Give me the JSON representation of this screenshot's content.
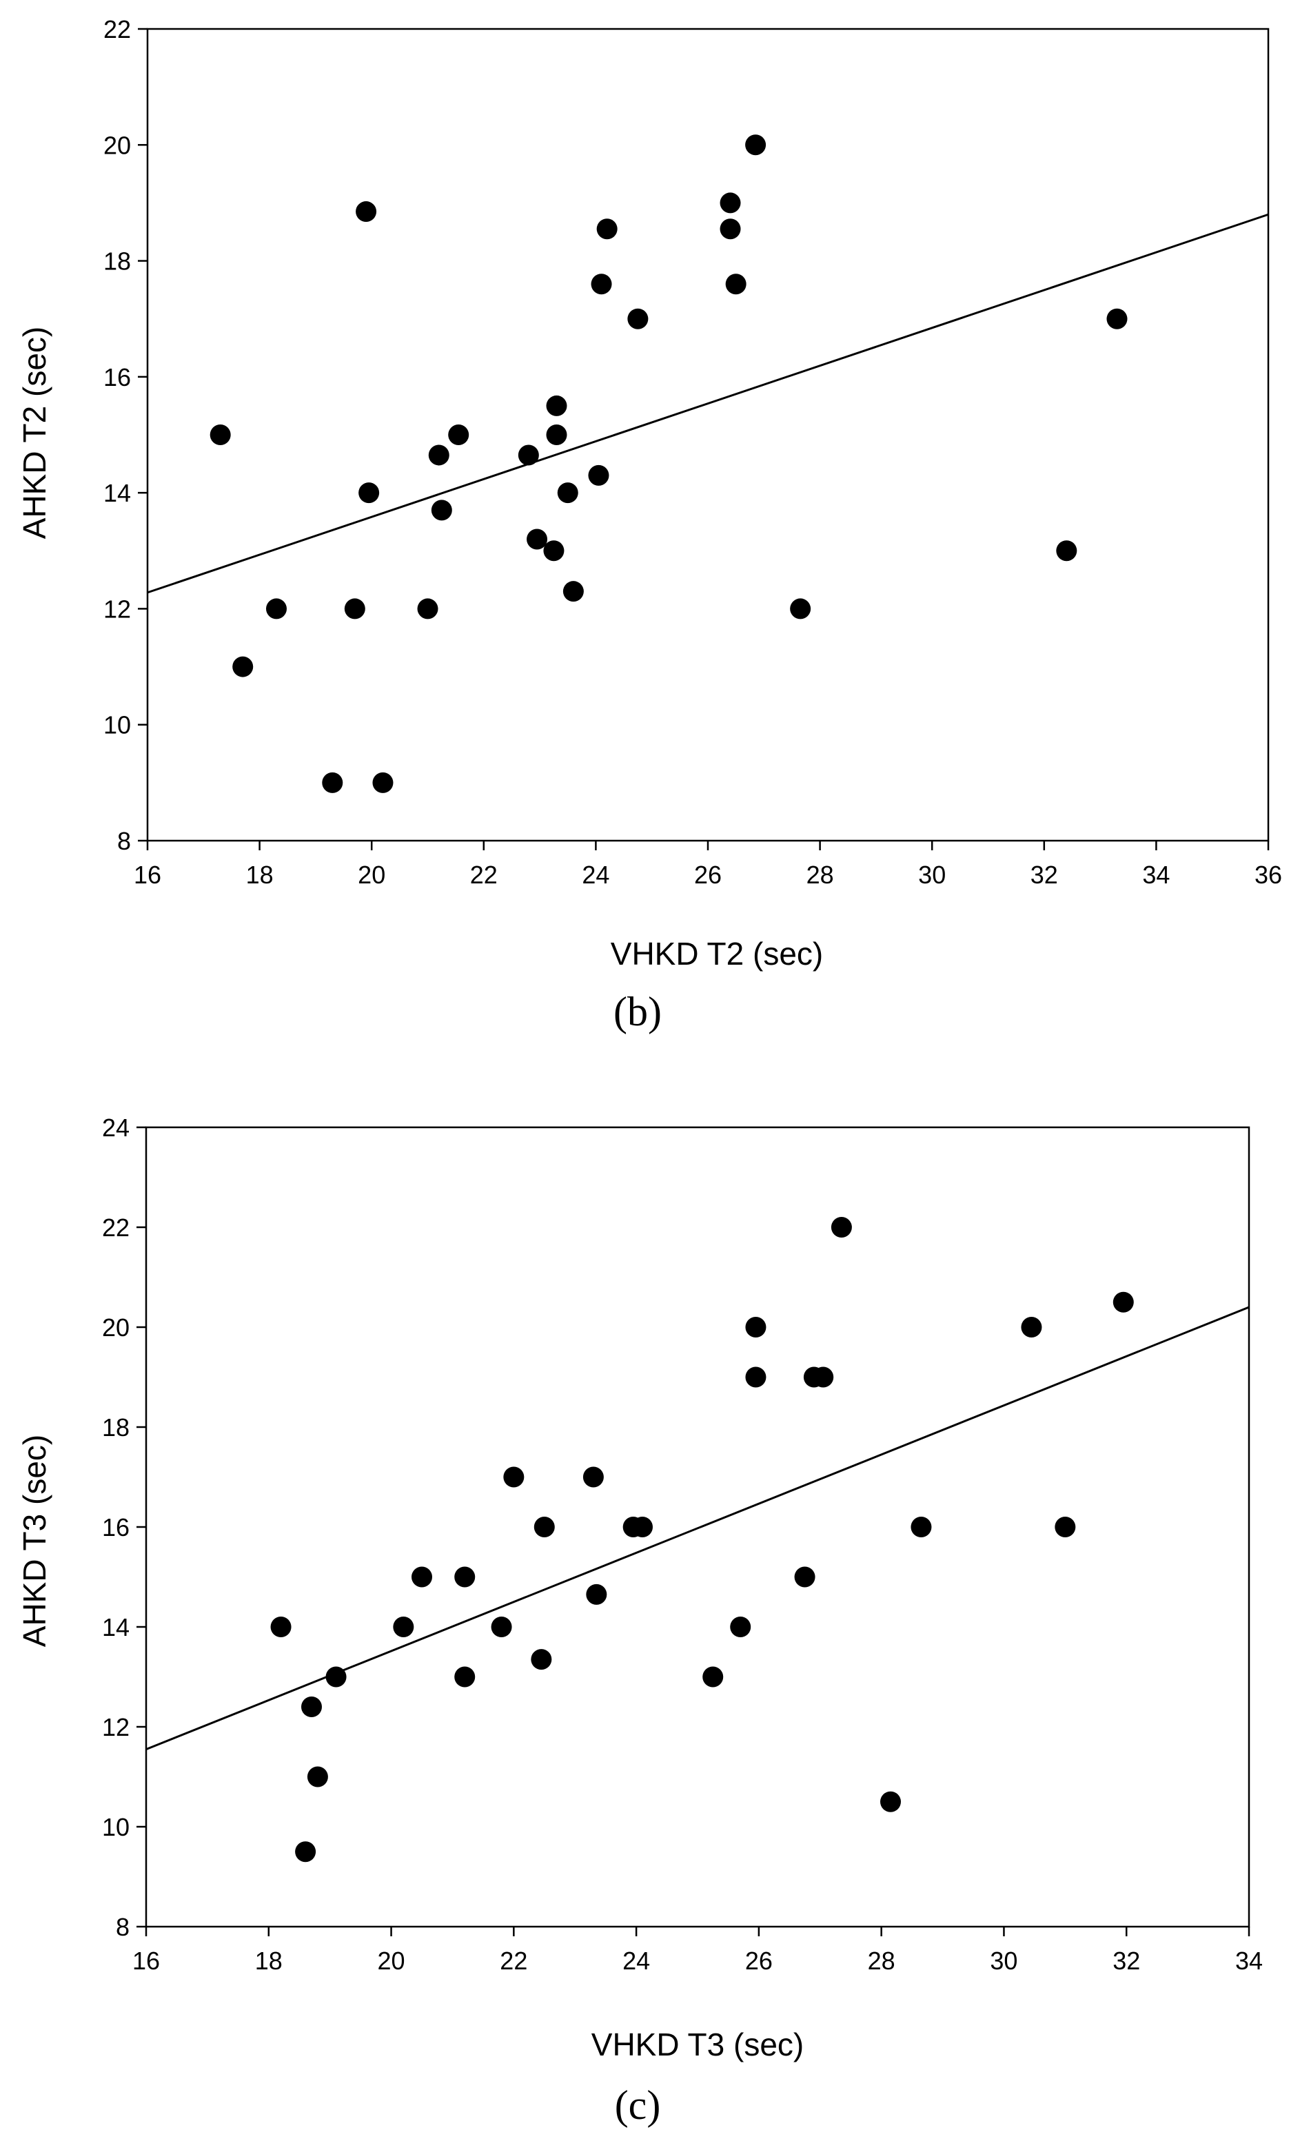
{
  "chart_data": [
    {
      "type": "scatter",
      "caption": "(b)",
      "xlabel": "VHKD T2 (sec)",
      "ylabel": "AHKD T2 (sec)",
      "xlim": [
        16,
        36
      ],
      "ylim": [
        8,
        22
      ],
      "xticks": [
        16,
        18,
        20,
        22,
        24,
        26,
        28,
        30,
        32,
        34,
        36
      ],
      "yticks": [
        8,
        10,
        12,
        14,
        16,
        18,
        20,
        22
      ],
      "grid": false,
      "regression_line": {
        "x": [
          16,
          36
        ],
        "y": [
          12.28,
          18.8
        ]
      },
      "points": [
        {
          "x": 17.3,
          "y": 15.0
        },
        {
          "x": 17.7,
          "y": 11.0
        },
        {
          "x": 18.3,
          "y": 12.0
        },
        {
          "x": 19.3,
          "y": 9.0
        },
        {
          "x": 19.7,
          "y": 12.0
        },
        {
          "x": 19.9,
          "y": 18.85
        },
        {
          "x": 19.95,
          "y": 14.0
        },
        {
          "x": 20.2,
          "y": 9.0
        },
        {
          "x": 21.0,
          "y": 12.0
        },
        {
          "x": 21.2,
          "y": 14.65
        },
        {
          "x": 21.25,
          "y": 13.7
        },
        {
          "x": 21.55,
          "y": 15.0
        },
        {
          "x": 22.8,
          "y": 14.65
        },
        {
          "x": 22.95,
          "y": 13.2
        },
        {
          "x": 23.25,
          "y": 13.0
        },
        {
          "x": 23.3,
          "y": 15.0
        },
        {
          "x": 23.3,
          "y": 15.5
        },
        {
          "x": 23.5,
          "y": 14.0
        },
        {
          "x": 23.6,
          "y": 12.3
        },
        {
          "x": 24.05,
          "y": 14.3
        },
        {
          "x": 24.1,
          "y": 17.6
        },
        {
          "x": 24.2,
          "y": 18.55
        },
        {
          "x": 24.75,
          "y": 17.0
        },
        {
          "x": 26.4,
          "y": 19.0
        },
        {
          "x": 26.4,
          "y": 18.55
        },
        {
          "x": 26.5,
          "y": 17.6
        },
        {
          "x": 26.85,
          "y": 20.0
        },
        {
          "x": 27.65,
          "y": 12.0
        },
        {
          "x": 32.4,
          "y": 13.0
        },
        {
          "x": 33.3,
          "y": 17.0
        }
      ]
    },
    {
      "type": "scatter",
      "caption": "(c)",
      "xlabel": "VHKD T3 (sec)",
      "ylabel": "AHKD T3 (sec)",
      "xlim": [
        16,
        34
      ],
      "ylim": [
        8,
        24
      ],
      "xticks": [
        16,
        18,
        20,
        22,
        24,
        26,
        28,
        30,
        32,
        34
      ],
      "yticks": [
        8,
        10,
        12,
        14,
        16,
        18,
        20,
        22,
        24
      ],
      "grid": false,
      "regression_line": {
        "x": [
          16,
          34
        ],
        "y": [
          11.55,
          20.4
        ]
      },
      "points": [
        {
          "x": 18.2,
          "y": 14.0
        },
        {
          "x": 18.6,
          "y": 9.5
        },
        {
          "x": 18.7,
          "y": 12.4
        },
        {
          "x": 18.8,
          "y": 11.0
        },
        {
          "x": 19.1,
          "y": 13.0
        },
        {
          "x": 20.2,
          "y": 14.0
        },
        {
          "x": 20.5,
          "y": 15.0
        },
        {
          "x": 21.2,
          "y": 15.0
        },
        {
          "x": 21.2,
          "y": 13.0
        },
        {
          "x": 21.8,
          "y": 14.0
        },
        {
          "x": 22.0,
          "y": 17.0
        },
        {
          "x": 22.45,
          "y": 13.35
        },
        {
          "x": 22.5,
          "y": 16.0
        },
        {
          "x": 23.3,
          "y": 17.0
        },
        {
          "x": 23.35,
          "y": 14.65
        },
        {
          "x": 23.95,
          "y": 16.0
        },
        {
          "x": 24.1,
          "y": 16.0
        },
        {
          "x": 25.25,
          "y": 13.0
        },
        {
          "x": 25.7,
          "y": 14.0
        },
        {
          "x": 25.95,
          "y": 20.0
        },
        {
          "x": 25.95,
          "y": 19.0
        },
        {
          "x": 26.75,
          "y": 15.0
        },
        {
          "x": 26.9,
          "y": 19.0
        },
        {
          "x": 27.05,
          "y": 19.0
        },
        {
          "x": 27.35,
          "y": 22.0
        },
        {
          "x": 28.15,
          "y": 10.5
        },
        {
          "x": 28.65,
          "y": 16.0
        },
        {
          "x": 30.45,
          "y": 20.0
        },
        {
          "x": 31.0,
          "y": 16.0
        },
        {
          "x": 31.95,
          "y": 20.5
        }
      ]
    }
  ]
}
